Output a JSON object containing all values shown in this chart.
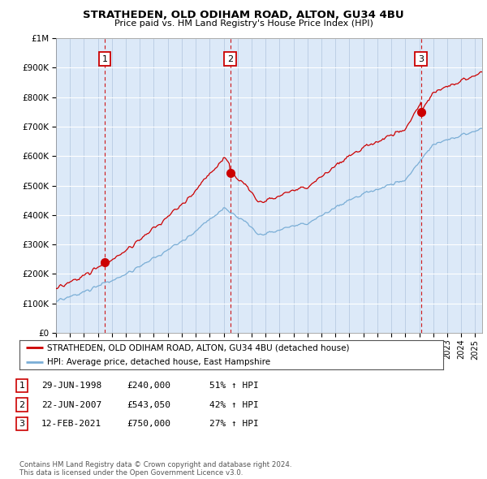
{
  "title": "STRATHEDEN, OLD ODIHAM ROAD, ALTON, GU34 4BU",
  "subtitle": "Price paid vs. HM Land Registry's House Price Index (HPI)",
  "background_color": "#dce9f8",
  "plot_bg_color": "#dce9f8",
  "sale_dates": [
    1998.49,
    2007.47,
    2021.12
  ],
  "sale_prices": [
    240000,
    543050,
    750000
  ],
  "sale_labels": [
    "1",
    "2",
    "3"
  ],
  "legend_line1": "STRATHEDEN, OLD ODIHAM ROAD, ALTON, GU34 4BU (detached house)",
  "legend_line2": "HPI: Average price, detached house, East Hampshire",
  "table_data": [
    [
      "1",
      "29-JUN-1998",
      "£240,000",
      "51% ↑ HPI"
    ],
    [
      "2",
      "22-JUN-2007",
      "£543,050",
      "42% ↑ HPI"
    ],
    [
      "3",
      "12-FEB-2021",
      "£750,000",
      "27% ↑ HPI"
    ]
  ],
  "footer": "Contains HM Land Registry data © Crown copyright and database right 2024.\nThis data is licensed under the Open Government Licence v3.0.",
  "red_color": "#cc0000",
  "blue_color": "#7aaed6",
  "ylim_max": 1000000,
  "xlim_start": 1995.0,
  "xlim_end": 2025.5,
  "hpi_seed": 12345,
  "n_points": 370
}
